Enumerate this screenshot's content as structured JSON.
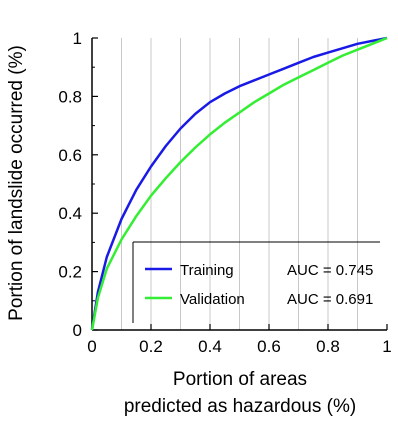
{
  "chart_data": {
    "type": "line",
    "xlabel_line1": "Portion of areas",
    "xlabel_line2": "predicted as hazardous (%)",
    "ylabel": "Portion of landslide occurred (%)",
    "xlim": [
      0,
      1
    ],
    "ylim": [
      0,
      1
    ],
    "x_ticks": [
      0,
      0.2,
      0.4,
      0.6,
      0.8,
      1
    ],
    "x_tick_labels": [
      "0",
      "0.2",
      "0.4",
      "0.6",
      "0.8",
      "1"
    ],
    "y_ticks": [
      0,
      0.2,
      0.4,
      0.6,
      0.8,
      1
    ],
    "y_tick_labels": [
      "0",
      "0.2",
      "0.4",
      "0.6",
      "0.8",
      "1"
    ],
    "vertical_gridlines": [
      0.1,
      0.2,
      0.3,
      0.4,
      0.5,
      0.6,
      0.7,
      0.8,
      0.9
    ],
    "legend_placement": "bottom-right",
    "series": [
      {
        "name": "Training",
        "auc_text": "AUC = 0.745",
        "color": "#1a1ae6",
        "x": [
          0,
          0.02,
          0.05,
          0.1,
          0.15,
          0.2,
          0.25,
          0.3,
          0.35,
          0.4,
          0.45,
          0.5,
          0.55,
          0.6,
          0.65,
          0.7,
          0.75,
          0.8,
          0.85,
          0.9,
          0.95,
          1
        ],
        "y": [
          0,
          0.13,
          0.25,
          0.38,
          0.48,
          0.56,
          0.63,
          0.69,
          0.74,
          0.78,
          0.81,
          0.835,
          0.855,
          0.875,
          0.895,
          0.915,
          0.935,
          0.95,
          0.965,
          0.98,
          0.99,
          1
        ]
      },
      {
        "name": "Validation",
        "auc_text": "AUC = 0.691",
        "color": "#33ee33",
        "x": [
          0,
          0.02,
          0.05,
          0.1,
          0.15,
          0.2,
          0.25,
          0.3,
          0.35,
          0.4,
          0.45,
          0.5,
          0.55,
          0.6,
          0.65,
          0.7,
          0.75,
          0.8,
          0.85,
          0.9,
          0.95,
          1
        ],
        "y": [
          0,
          0.11,
          0.21,
          0.31,
          0.39,
          0.46,
          0.52,
          0.575,
          0.625,
          0.67,
          0.71,
          0.745,
          0.78,
          0.81,
          0.84,
          0.865,
          0.89,
          0.915,
          0.94,
          0.96,
          0.98,
          1
        ]
      }
    ]
  }
}
